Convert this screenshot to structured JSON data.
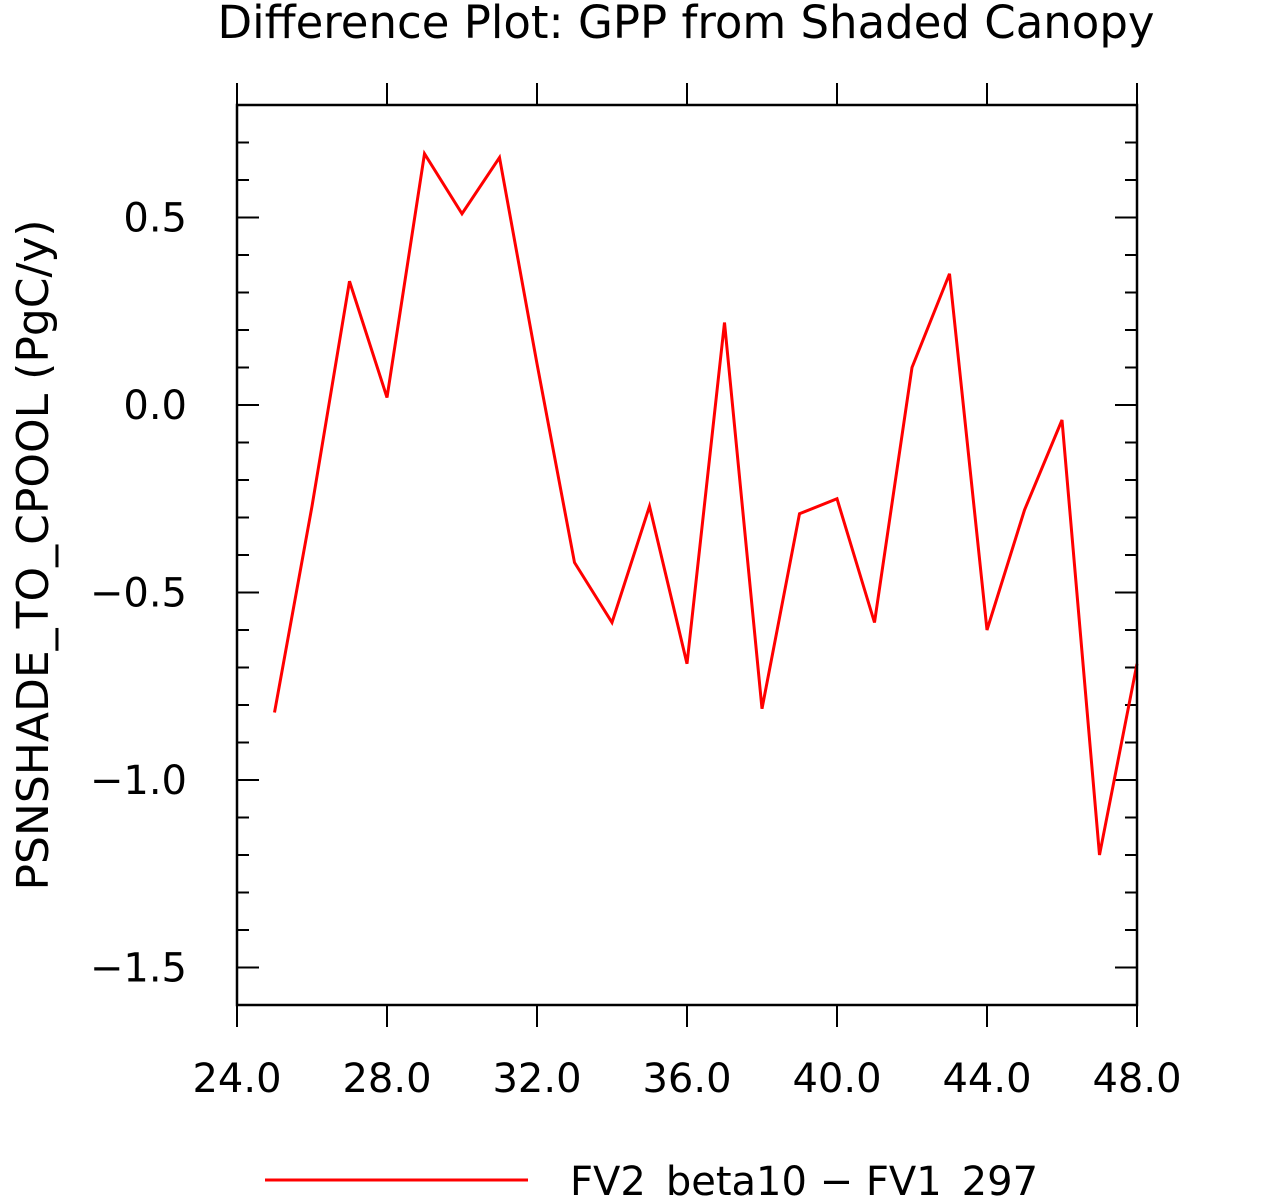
{
  "chart_data": {
    "type": "line",
    "title": "Difference Plot: GPP from Shaded Canopy",
    "xlabel": "",
    "ylabel": "PSNSHADE_TO_CPOOL  (PgC/y)",
    "xlim": [
      24,
      48
    ],
    "ylim": [
      -1.6,
      0.8
    ],
    "x_ticks": [
      24,
      28,
      32,
      36,
      40,
      44,
      48
    ],
    "x_tick_labels": [
      "24.0",
      "28.0",
      "32.0",
      "36.0",
      "40.0",
      "44.0",
      "48.0"
    ],
    "y_ticks": [
      -1.5,
      -1.0,
      -0.5,
      0.0,
      0.5
    ],
    "y_tick_labels": [
      "−1.5",
      "−1.0",
      "−0.5",
      "0.0",
      "0.5"
    ],
    "grid": false,
    "legend_position": "bottom-center",
    "series": [
      {
        "name": "FV2_beta10 − FV1_297",
        "color": "#ff0000",
        "x": [
          25,
          26,
          27,
          28,
          29,
          30,
          31,
          32,
          33,
          34,
          35,
          36,
          37,
          38,
          39,
          40,
          41,
          42,
          43,
          44,
          45,
          46,
          47,
          48
        ],
        "y": [
          -0.82,
          -0.27,
          0.33,
          0.02,
          0.67,
          0.51,
          0.66,
          0.11,
          -0.42,
          -0.58,
          -0.27,
          -0.69,
          0.22,
          -0.81,
          -0.29,
          -0.25,
          -0.58,
          0.1,
          0.35,
          -0.6,
          -0.28,
          -0.04,
          -1.2,
          -0.69
        ]
      }
    ]
  }
}
